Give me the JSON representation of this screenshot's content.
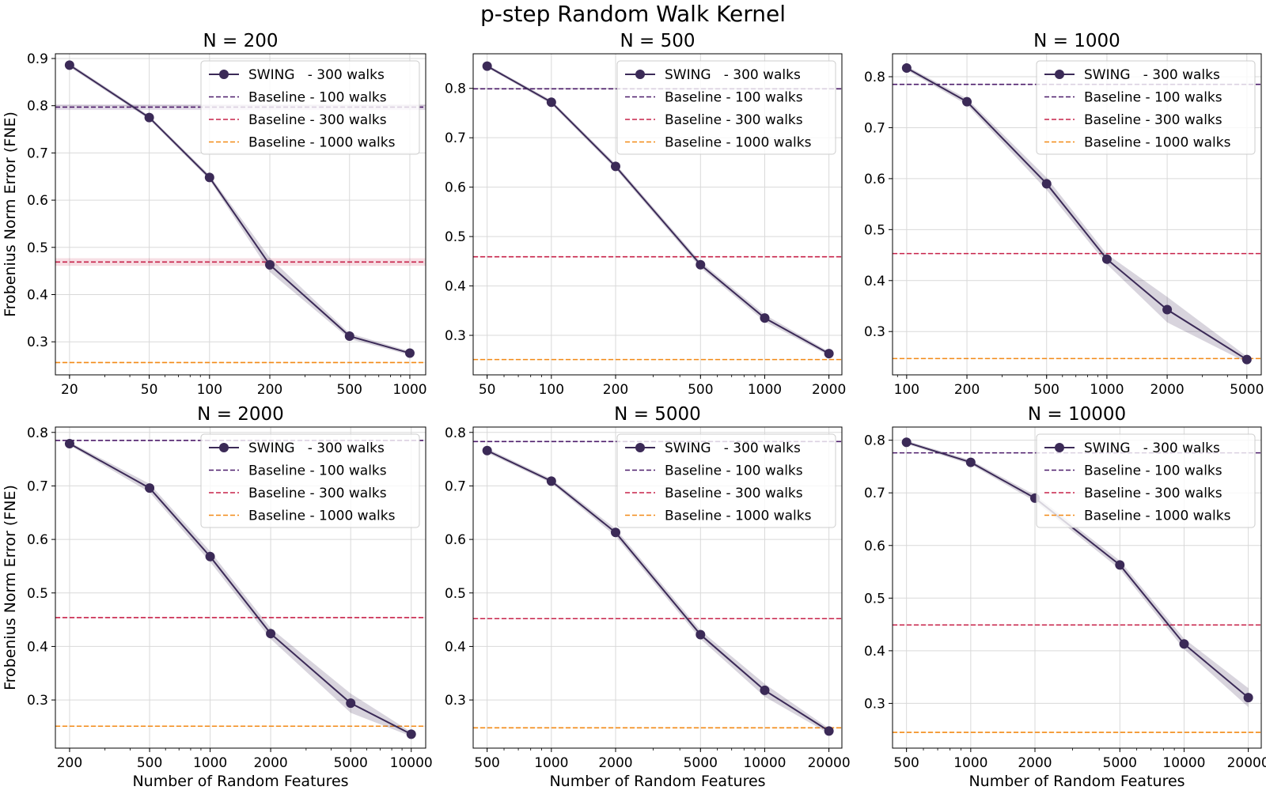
{
  "figure_title": "p-step Random Walk Kernel",
  "ylabel": "Frobenius Norm Error (FNE)",
  "xlabel": "Number of Random Features",
  "legend": {
    "swing": "SWING   - 300 walks",
    "b100": "Baseline - 100 walks",
    "b300": "Baseline - 300 walks",
    "b1000": "Baseline - 1000 walks"
  },
  "colors": {
    "swing": "#3b2a57",
    "b100": "#4d1d6b",
    "b300": "#c7234a",
    "b1000": "#f28a17",
    "grid": "#d9d9d9",
    "axis": "#000000"
  },
  "chart_data": [
    {
      "type": "line",
      "title": "N = 200",
      "x": [
        20,
        50,
        100,
        200,
        500,
        1000
      ],
      "xticks": [
        "20",
        "50",
        "100",
        "200",
        "500",
        "1000"
      ],
      "xlim": [
        17,
        1200
      ],
      "ylim": [
        0.23,
        0.91
      ],
      "yticks": [
        "0.3",
        "0.4",
        "0.5",
        "0.6",
        "0.7",
        "0.8",
        "0.9"
      ],
      "series": [
        {
          "name": "SWING - 300 walks",
          "values": [
            0.886,
            0.775,
            0.648,
            0.463,
            0.312,
            0.276
          ],
          "band": [
            0.004,
            0.004,
            0.005,
            0.015,
            0.006,
            0.004
          ]
        }
      ],
      "baselines": {
        "b100": 0.797,
        "b300": 0.469,
        "b1000": 0.256
      },
      "baseline_bands": {
        "b100": 0.006,
        "b300": 0.008,
        "b1000": 0.001
      },
      "show_ylabel": true,
      "show_xlabel": false
    },
    {
      "type": "line",
      "title": "N = 500",
      "x": [
        50,
        100,
        200,
        500,
        1000,
        2000
      ],
      "xticks": [
        "50",
        "100",
        "200",
        "500",
        "1000",
        "2000"
      ],
      "xlim": [
        43,
        2300
      ],
      "ylim": [
        0.22,
        0.87
      ],
      "yticks": [
        "0.3",
        "0.4",
        "0.5",
        "0.6",
        "0.7",
        "0.8"
      ],
      "series": [
        {
          "name": "SWING - 300 walks",
          "values": [
            0.845,
            0.772,
            0.642,
            0.443,
            0.335,
            0.263
          ],
          "band": [
            0.003,
            0.004,
            0.005,
            0.006,
            0.007,
            0.004
          ]
        }
      ],
      "baselines": {
        "b100": 0.799,
        "b300": 0.459,
        "b1000": 0.251
      },
      "baseline_bands": {
        "b100": 0.001,
        "b300": 0.001,
        "b1000": 0.001
      },
      "show_ylabel": false,
      "show_xlabel": false
    },
    {
      "type": "line",
      "title": "N = 1000",
      "x": [
        100,
        200,
        500,
        1000,
        2000,
        5000
      ],
      "xticks": [
        "100",
        "200",
        "500",
        "1000",
        "2000",
        "5000"
      ],
      "xlim": [
        85,
        5900
      ],
      "ylim": [
        0.215,
        0.845
      ],
      "yticks": [
        "0.3",
        "0.4",
        "0.5",
        "0.6",
        "0.7",
        "0.8"
      ],
      "series": [
        {
          "name": "SWING - 300 walks",
          "values": [
            0.817,
            0.751,
            0.59,
            0.442,
            0.343,
            0.245
          ],
          "band": [
            0.004,
            0.006,
            0.012,
            0.01,
            0.025,
            0.006
          ]
        }
      ],
      "baselines": {
        "b100": 0.785,
        "b300": 0.453,
        "b1000": 0.247
      },
      "baseline_bands": {
        "b100": 0.001,
        "b300": 0.001,
        "b1000": 0.001
      },
      "show_ylabel": false,
      "show_xlabel": false
    },
    {
      "type": "line",
      "title": "N = 2000",
      "x": [
        200,
        500,
        1000,
        2000,
        5000,
        10000
      ],
      "xticks": [
        "200",
        "500",
        "1000",
        "2000",
        "5000",
        "10000"
      ],
      "xlim": [
        170,
        11800
      ],
      "ylim": [
        0.21,
        0.81
      ],
      "yticks": [
        "0.3",
        "0.4",
        "0.5",
        "0.6",
        "0.7",
        "0.8"
      ],
      "series": [
        {
          "name": "SWING - 300 walks",
          "values": [
            0.779,
            0.696,
            0.568,
            0.424,
            0.294,
            0.236
          ],
          "band": [
            0.003,
            0.008,
            0.01,
            0.01,
            0.018,
            0.004
          ]
        }
      ],
      "baselines": {
        "b100": 0.785,
        "b300": 0.454,
        "b1000": 0.251
      },
      "baseline_bands": {
        "b100": 0.001,
        "b300": 0.001,
        "b1000": 0.001
      },
      "show_ylabel": true,
      "show_xlabel": true
    },
    {
      "type": "line",
      "title": "N = 5000",
      "x": [
        500,
        1000,
        2000,
        5000,
        10000,
        20000
      ],
      "xticks": [
        "500",
        "1000",
        "2000",
        "5000",
        "10000",
        "20000"
      ],
      "xlim": [
        430,
        23000
      ],
      "ylim": [
        0.21,
        0.81
      ],
      "yticks": [
        "0.3",
        "0.4",
        "0.5",
        "0.6",
        "0.7",
        "0.8"
      ],
      "series": [
        {
          "name": "SWING - 300 walks",
          "values": [
            0.766,
            0.709,
            0.613,
            0.422,
            0.318,
            0.242
          ],
          "band": [
            0.004,
            0.004,
            0.007,
            0.008,
            0.012,
            0.005
          ]
        }
      ],
      "baselines": {
        "b100": 0.783,
        "b300": 0.452,
        "b1000": 0.248
      },
      "baseline_bands": {
        "b100": 0.001,
        "b300": 0.001,
        "b1000": 0.001
      },
      "show_ylabel": false,
      "show_xlabel": true
    },
    {
      "type": "line",
      "title": "N = 10000",
      "x": [
        500,
        1000,
        2000,
        5000,
        10000,
        20000
      ],
      "xticks": [
        "500",
        "1000",
        "2000",
        "5000",
        "10000",
        "20000"
      ],
      "xlim": [
        430,
        23000
      ],
      "ylim": [
        0.215,
        0.825
      ],
      "yticks": [
        "0.3",
        "0.4",
        "0.5",
        "0.6",
        "0.7",
        "0.8"
      ],
      "series": [
        {
          "name": "SWING - 300 walks",
          "values": [
            0.796,
            0.758,
            0.69,
            0.563,
            0.413,
            0.311
          ],
          "band": [
            0.003,
            0.004,
            0.006,
            0.008,
            0.01,
            0.018
          ]
        }
      ],
      "baselines": {
        "b100": 0.776,
        "b300": 0.449,
        "b1000": 0.245
      },
      "baseline_bands": {
        "b100": 0.001,
        "b300": 0.001,
        "b1000": 0.001
      },
      "show_ylabel": false,
      "show_xlabel": true
    }
  ]
}
